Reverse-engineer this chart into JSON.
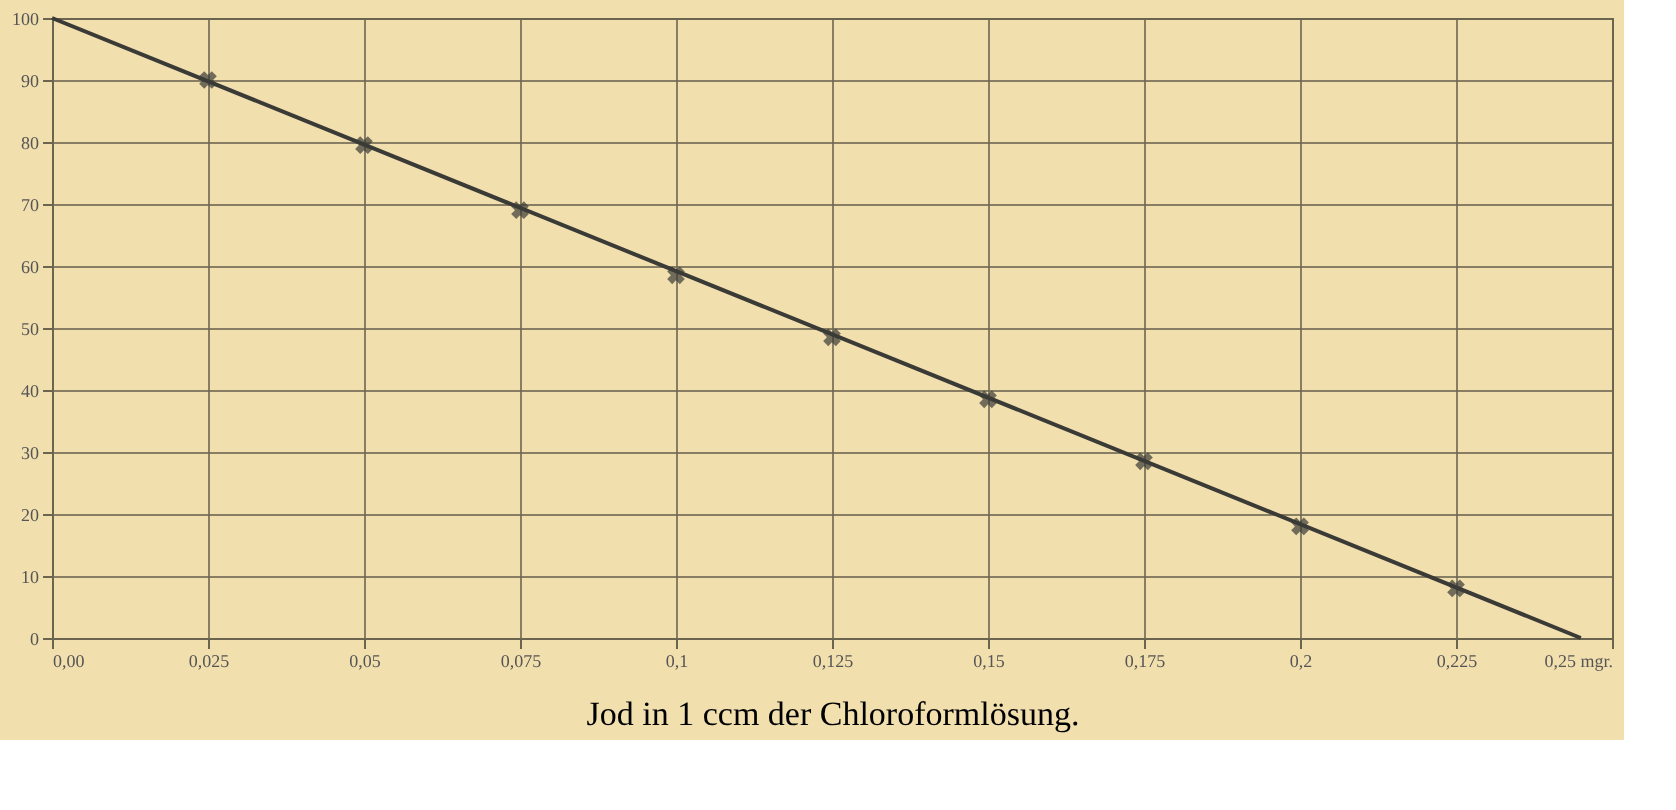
{
  "chart_data": {
    "type": "line",
    "xlabel": "Jod in 1 ccm der Chloroformlösung.",
    "series": [
      {
        "type": "scatter",
        "color": "#3a3a36",
        "marker": "cross",
        "x": [
          0.025,
          0.05,
          0.075,
          0.1,
          0.125,
          0.15,
          0.175,
          0.2,
          0.225
        ],
        "values": [
          90,
          79.5,
          69,
          58.5,
          48.5,
          38.5,
          28.5,
          18,
          8
        ]
      },
      {
        "color": "#3a3a36",
        "line_style": "solid",
        "x": [
          0,
          0.245
        ],
        "values": [
          100,
          0
        ]
      }
    ],
    "xlim": [
      0,
      0.25
    ],
    "xticks": [
      {
        "value": 0,
        "label": "0,00"
      },
      {
        "value": 0.025,
        "label": "0,025"
      },
      {
        "value": 0.05,
        "label": "0,05"
      },
      {
        "value": 0.075,
        "label": "0,075"
      },
      {
        "value": 0.1,
        "label": "0,1"
      },
      {
        "value": 0.125,
        "label": "0,125"
      },
      {
        "value": 0.15,
        "label": "0,15"
      },
      {
        "value": 0.175,
        "label": "0,175"
      },
      {
        "value": 0.2,
        "label": "0,2"
      },
      {
        "value": 0.225,
        "label": "0,225"
      },
      {
        "value": 0.25,
        "label": "0,25 mgr."
      }
    ],
    "ylim": [
      0,
      100
    ],
    "yticks": [
      0,
      10,
      20,
      30,
      40,
      50,
      60,
      70,
      80,
      90,
      100
    ],
    "grid": true
  }
}
